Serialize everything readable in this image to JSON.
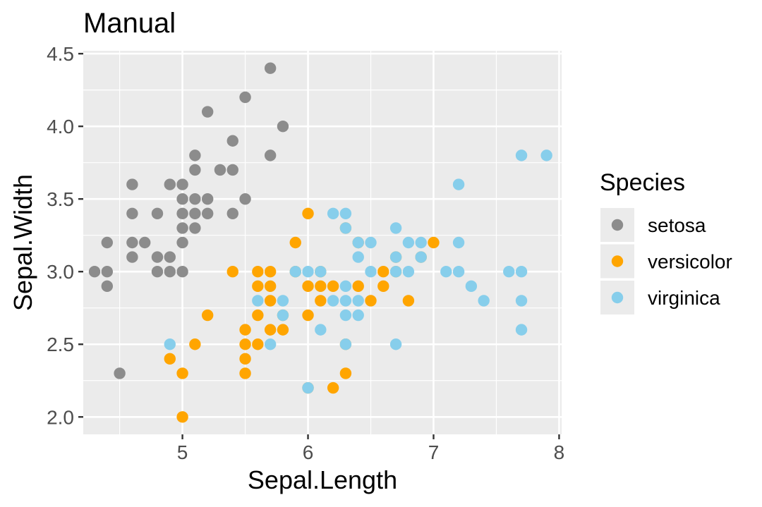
{
  "chart_data": {
    "type": "scatter",
    "title": "Manual",
    "xlabel": "Sepal.Length",
    "ylabel": "Sepal.Width",
    "xlim": [
      4.21,
      8.02
    ],
    "ylim": [
      1.88,
      4.52
    ],
    "xticks": [
      5,
      6,
      7,
      8
    ],
    "xtick_labels": [
      "5",
      "6",
      "7",
      "8"
    ],
    "yticks": [
      2.0,
      2.5,
      3.0,
      3.5,
      4.0,
      4.5
    ],
    "ytick_labels": [
      "2.0",
      "2.5",
      "3.0",
      "3.5",
      "4.0",
      "4.5"
    ],
    "grid": true,
    "legend": {
      "title": "Species",
      "position": "right"
    },
    "series": [
      {
        "name": "setosa",
        "color": "#8c8c8c",
        "points": [
          [
            4.3,
            3.0
          ],
          [
            4.4,
            2.9
          ],
          [
            4.4,
            3.0
          ],
          [
            4.4,
            3.2
          ],
          [
            4.5,
            2.3
          ],
          [
            4.6,
            3.1
          ],
          [
            4.6,
            3.2
          ],
          [
            4.6,
            3.4
          ],
          [
            4.6,
            3.6
          ],
          [
            4.7,
            3.2
          ],
          [
            4.8,
            3.0
          ],
          [
            4.8,
            3.1
          ],
          [
            4.8,
            3.4
          ],
          [
            4.9,
            3.0
          ],
          [
            4.9,
            3.1
          ],
          [
            4.9,
            3.6
          ],
          [
            5.0,
            3.0
          ],
          [
            5.0,
            3.2
          ],
          [
            5.0,
            3.3
          ],
          [
            5.0,
            3.4
          ],
          [
            5.0,
            3.5
          ],
          [
            5.0,
            3.6
          ],
          [
            5.1,
            3.3
          ],
          [
            5.1,
            3.4
          ],
          [
            5.1,
            3.5
          ],
          [
            5.1,
            3.7
          ],
          [
            5.1,
            3.8
          ],
          [
            5.2,
            3.4
          ],
          [
            5.2,
            3.5
          ],
          [
            5.2,
            4.1
          ],
          [
            5.3,
            3.7
          ],
          [
            5.4,
            3.4
          ],
          [
            5.4,
            3.7
          ],
          [
            5.4,
            3.9
          ],
          [
            5.5,
            3.5
          ],
          [
            5.5,
            4.2
          ],
          [
            5.7,
            3.8
          ],
          [
            5.7,
            4.4
          ],
          [
            5.8,
            4.0
          ]
        ]
      },
      {
        "name": "versicolor",
        "color": "#ffa500",
        "points": [
          [
            4.9,
            2.4
          ],
          [
            5.0,
            2.0
          ],
          [
            5.0,
            2.3
          ],
          [
            5.1,
            2.5
          ],
          [
            5.2,
            2.7
          ],
          [
            5.4,
            3.0
          ],
          [
            5.5,
            2.3
          ],
          [
            5.5,
            2.4
          ],
          [
            5.5,
            2.5
          ],
          [
            5.5,
            2.6
          ],
          [
            5.6,
            2.5
          ],
          [
            5.6,
            2.7
          ],
          [
            5.6,
            2.9
          ],
          [
            5.6,
            3.0
          ],
          [
            5.7,
            2.6
          ],
          [
            5.7,
            2.8
          ],
          [
            5.7,
            2.9
          ],
          [
            5.7,
            3.0
          ],
          [
            5.8,
            2.6
          ],
          [
            5.8,
            2.7
          ],
          [
            5.9,
            3.0
          ],
          [
            5.9,
            3.2
          ],
          [
            6.0,
            2.2
          ],
          [
            6.0,
            2.7
          ],
          [
            6.0,
            2.9
          ],
          [
            6.0,
            3.4
          ],
          [
            6.1,
            2.8
          ],
          [
            6.1,
            2.9
          ],
          [
            6.1,
            3.0
          ],
          [
            6.2,
            2.2
          ],
          [
            6.2,
            2.9
          ],
          [
            6.3,
            2.3
          ],
          [
            6.3,
            2.5
          ],
          [
            6.3,
            3.3
          ],
          [
            6.4,
            2.9
          ],
          [
            6.4,
            3.2
          ],
          [
            6.5,
            2.8
          ],
          [
            6.6,
            2.9
          ],
          [
            6.6,
            3.0
          ],
          [
            6.7,
            3.0
          ],
          [
            6.7,
            3.1
          ],
          [
            6.8,
            2.8
          ],
          [
            6.9,
            3.1
          ],
          [
            7.0,
            3.2
          ]
        ]
      },
      {
        "name": "virginica",
        "color": "#87ceeb",
        "points": [
          [
            4.9,
            2.5
          ],
          [
            5.6,
            2.8
          ],
          [
            5.7,
            2.5
          ],
          [
            5.8,
            2.7
          ],
          [
            5.8,
            2.8
          ],
          [
            5.9,
            3.0
          ],
          [
            6.0,
            2.2
          ],
          [
            6.0,
            3.0
          ],
          [
            6.1,
            2.6
          ],
          [
            6.1,
            3.0
          ],
          [
            6.2,
            2.8
          ],
          [
            6.2,
            3.4
          ],
          [
            6.3,
            2.5
          ],
          [
            6.3,
            2.7
          ],
          [
            6.3,
            2.8
          ],
          [
            6.3,
            2.9
          ],
          [
            6.3,
            3.3
          ],
          [
            6.3,
            3.4
          ],
          [
            6.4,
            2.7
          ],
          [
            6.4,
            2.8
          ],
          [
            6.4,
            3.1
          ],
          [
            6.4,
            3.2
          ],
          [
            6.5,
            3.0
          ],
          [
            6.5,
            3.2
          ],
          [
            6.7,
            2.5
          ],
          [
            6.7,
            3.0
          ],
          [
            6.7,
            3.1
          ],
          [
            6.7,
            3.3
          ],
          [
            6.8,
            3.0
          ],
          [
            6.8,
            3.2
          ],
          [
            6.9,
            3.1
          ],
          [
            6.9,
            3.2
          ],
          [
            7.1,
            3.0
          ],
          [
            7.2,
            3.0
          ],
          [
            7.2,
            3.2
          ],
          [
            7.2,
            3.6
          ],
          [
            7.3,
            2.9
          ],
          [
            7.4,
            2.8
          ],
          [
            7.6,
            3.0
          ],
          [
            7.7,
            2.6
          ],
          [
            7.7,
            2.8
          ],
          [
            7.7,
            3.0
          ],
          [
            7.7,
            3.8
          ],
          [
            7.9,
            3.8
          ]
        ]
      }
    ]
  }
}
